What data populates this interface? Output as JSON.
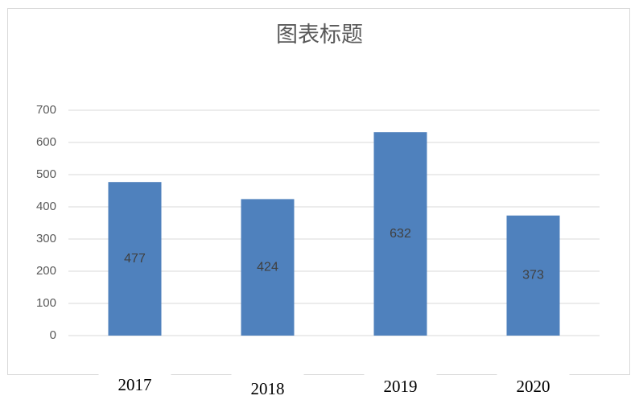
{
  "chart_data": {
    "type": "bar",
    "title": "图表标题",
    "categories": [
      "2017",
      "2018",
      "2019",
      "2020"
    ],
    "values": [
      477,
      424,
      632,
      373
    ],
    "color": "#4f81bd",
    "ylim": [
      0,
      700
    ],
    "yticks": [
      0,
      100,
      200,
      300,
      400,
      500,
      600,
      700
    ],
    "grid": true
  }
}
